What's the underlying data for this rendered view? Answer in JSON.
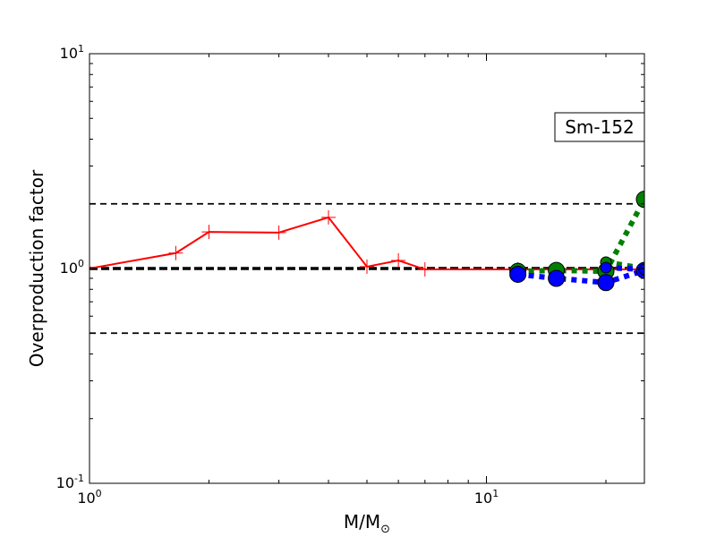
{
  "chart_data": {
    "type": "line",
    "xlabel": "M/M",
    "xlabel_symbol": "⊙",
    "ylabel": "Overproduction factor",
    "annotation": "Sm-152",
    "x_scale": "log",
    "y_scale": "log",
    "xlim": [
      1,
      25
    ],
    "ylim": [
      0.1,
      10
    ],
    "x_ticks": [
      {
        "value": 1,
        "base": "10",
        "exp": "0"
      },
      {
        "value": 10,
        "base": "10",
        "exp": "1"
      }
    ],
    "y_ticks": [
      {
        "value": 0.1,
        "base": "10",
        "exp": "-1"
      },
      {
        "value": 1,
        "base": "10",
        "exp": "0"
      },
      {
        "value": 10,
        "base": "10",
        "exp": "1"
      }
    ],
    "grid": false,
    "reference_lines": [
      {
        "y": 2.0,
        "style": "dashed",
        "weight": "thin"
      },
      {
        "y": 1.0,
        "style": "dashed",
        "weight": "thick"
      },
      {
        "y": 0.5,
        "style": "dashed",
        "weight": "thin"
      }
    ],
    "series": [
      {
        "color": "#ff0000",
        "line": "solid",
        "marker": "plus",
        "x": [
          1.0,
          1.65,
          2.0,
          3.0,
          4.0,
          5.0,
          6.0,
          7.0,
          12.0,
          15.0,
          20.0,
          25.0
        ],
        "y": [
          1.0,
          1.18,
          1.48,
          1.47,
          1.73,
          1.02,
          1.09,
          0.99,
          0.99,
          0.99,
          0.99,
          0.99
        ]
      },
      {
        "color": "#008000",
        "line": "dotted",
        "marker": "circle",
        "x": [
          12.0,
          15.0,
          20.0,
          25.0
        ],
        "y": [
          0.97,
          0.98,
          0.97,
          2.1
        ]
      },
      {
        "color": "#008000",
        "line": "dotted",
        "marker": "circle-small",
        "x": [
          20.0,
          25.0
        ],
        "y": [
          1.07,
          1.0
        ]
      },
      {
        "color": "#0000ff",
        "line": "dotted",
        "marker": "circle",
        "x": [
          12.0,
          15.0,
          20.0,
          25.0
        ],
        "y": [
          0.94,
          0.9,
          0.86,
          0.98
        ]
      },
      {
        "color": "#0000ff",
        "line": "dotted",
        "marker": "circle-small",
        "x": [
          20.0,
          25.0
        ],
        "y": [
          1.01,
          0.99
        ]
      }
    ]
  }
}
